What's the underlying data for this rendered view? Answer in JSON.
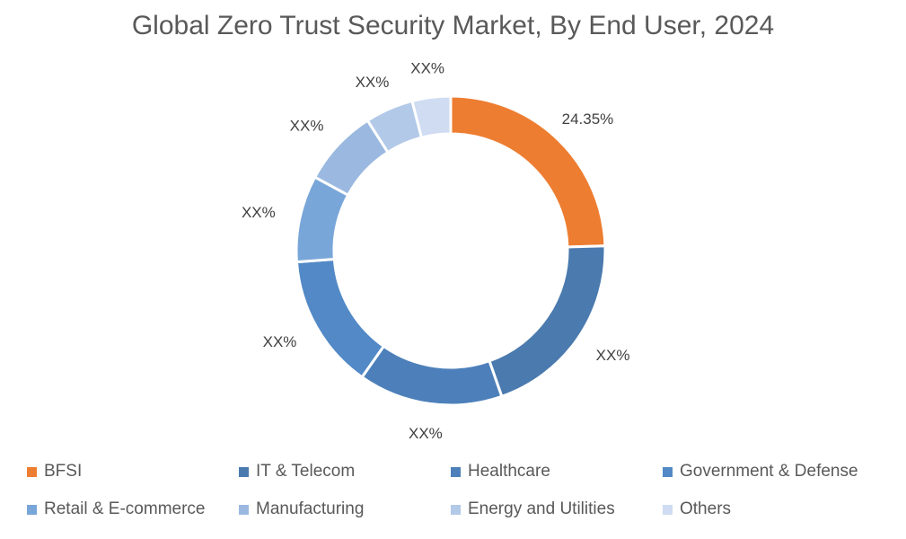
{
  "chart_data": {
    "type": "pie",
    "style": "donut",
    "title": "Global Zero Trust Security Market, By End User, 2024",
    "categories": [
      "BFSI",
      "IT & Telecom",
      "Healthcare",
      "Government & Defense",
      "Retail & E-commerce",
      "Manufacturing",
      "Energy and Utilities",
      "Others"
    ],
    "values": [
      24.35,
      20,
      15,
      14,
      9,
      8,
      5,
      4
    ],
    "labels": [
      "24.35%",
      "XX%",
      "XX%",
      "XX%",
      "XX%",
      "XX%",
      "XX%",
      "XX%"
    ],
    "colors": [
      "#ED7D31",
      "#4A7AAE",
      "#4D80BA",
      "#5289C6",
      "#79A6D9",
      "#9BB9E0",
      "#B2C9E8",
      "#CFDCF2"
    ],
    "legend_position": "bottom"
  }
}
